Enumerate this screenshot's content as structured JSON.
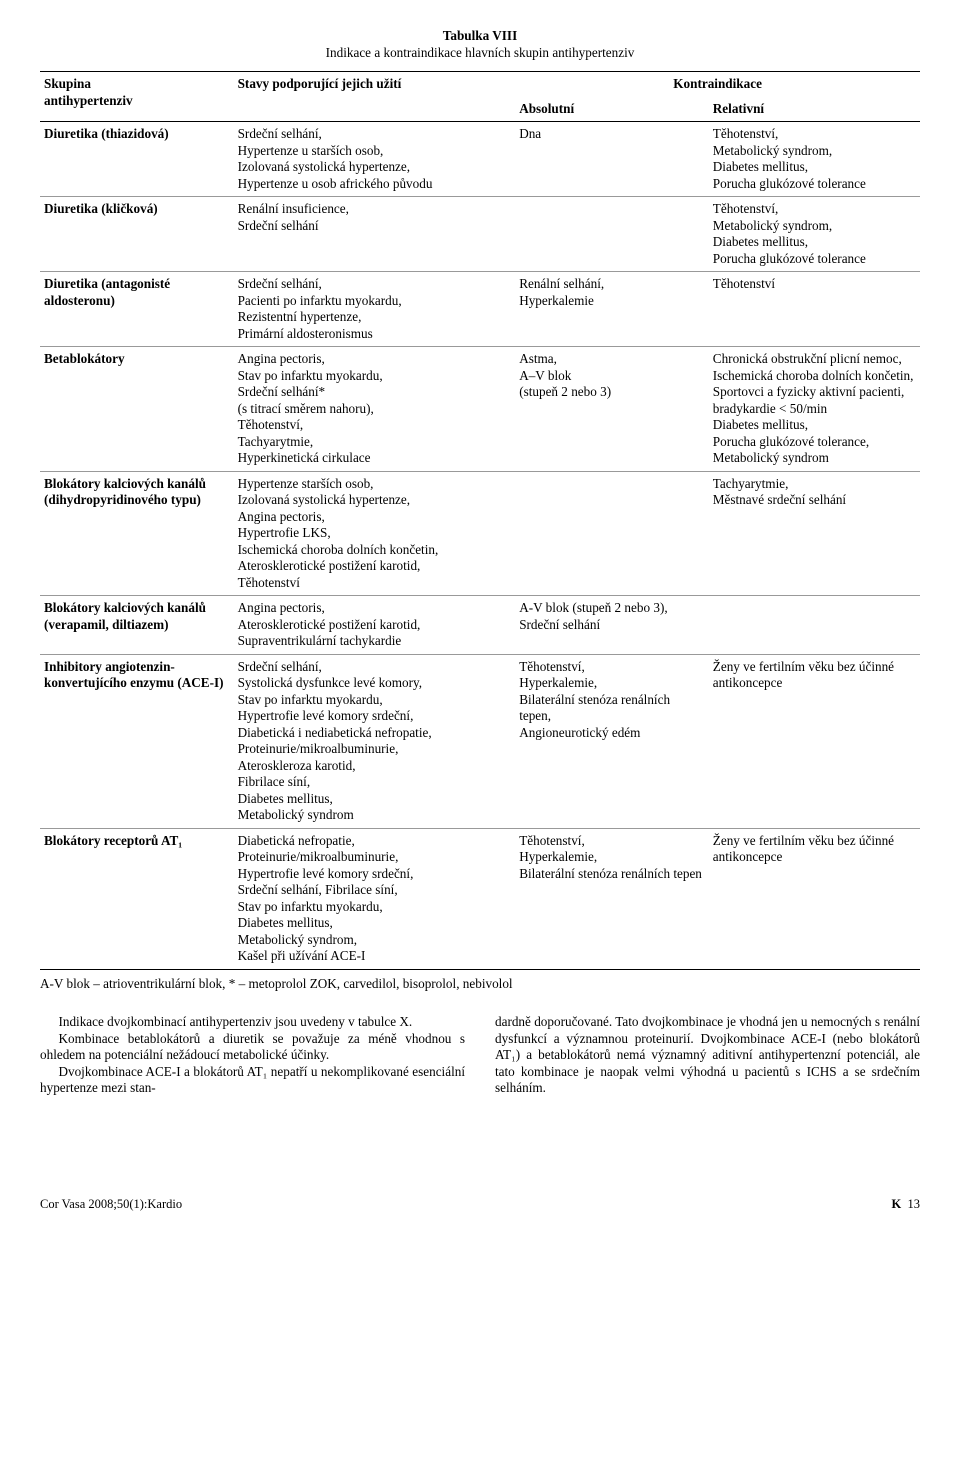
{
  "table": {
    "title": "Tabulka VIII",
    "subtitle": "Indikace a kontraindikace hlavních skupin antihypertenziv",
    "headers": {
      "group_top": "Skupina",
      "group_bottom": "antihypertenziv",
      "support": "Stavy podporující jejich užití",
      "contra": "Kontraindikace",
      "contra_abs": "Absolutní",
      "contra_rel": "Relativní"
    },
    "rows": [
      {
        "group": "Diuretika (thiazidová)",
        "support": "Srdeční selhání,\nHypertenze u starších osob,\nIzolovaná systolická hypertenze,\nHypertenze u osob afrického původu",
        "abs": "Dna",
        "rel": "Těhotenství,\nMetabolický syndrom,\nDiabetes mellitus,\nPorucha glukózové tolerance"
      },
      {
        "group": "Diuretika (kličková)",
        "support": "Renální insuficience,\nSrdeční selhání",
        "abs": "",
        "rel": "Těhotenství,\nMetabolický syndrom,\nDiabetes mellitus,\nPorucha glukózové tolerance"
      },
      {
        "group": "Diuretika (antagonisté aldosteronu)",
        "support": "Srdeční selhání,\nPacienti po infarktu myokardu,\nRezistentní hypertenze,\nPrimární aldosteronismus",
        "abs": "Renální selhání,\nHyperkalemie",
        "rel": "Těhotenství"
      },
      {
        "group": "Betablokátory",
        "support": "Angina pectoris,\nStav po infarktu myokardu,\nSrdeční selhání*\n(s titrací směrem nahoru),\nTěhotenství,\nTachyarytmie,\nHyperkinetická cirkulace",
        "abs": "Astma,\nA–V blok\n(stupeň 2 nebo 3)",
        "rel": "Chronická obstrukční plicní nemoc,\nIschemická choroba dolních končetin,\nSportovci a fyzicky aktivní pacienti,\nbradykardie < 50/min\nDiabetes mellitus,\nPorucha glukózové tolerance,\nMetabolický syndrom"
      },
      {
        "group": "Blokátory kalciových kanálů (dihydro­pyridinového typu)",
        "support": "Hypertenze starších osob,\nIzolovaná systolická hypertenze,\nAngina pectoris,\nHypertrofie LKS,\nIschemická choroba dolních končetin,\nAterosklerotické postižení karotid,\nTěhotenství",
        "abs": "",
        "rel": "Tachyarytmie,\nMěstnavé srdeční selhání"
      },
      {
        "group": "Blokátory kalciových kanálů (verapamil, diltiazem)",
        "support": "Angina pectoris,\nAterosklerotické postižení karotid,\nSupraventrikulární tachykardie",
        "abs": "A-V blok (stupeň 2 nebo 3),\nSrdeční selhání",
        "rel": ""
      },
      {
        "group": "Inhibitory angiotenzin­konvertujícího enzymu (ACE-I)",
        "support": "Srdeční selhání,\nSystolická dysfunkce levé komory,\nStav po infarktu myokardu,\nHypertrofie levé komory srdeční,\nDiabetická i nediabetická nefropatie,\nProteinurie/mikroalbuminurie,\nAteroskleroza karotid,\nFibrilace síní,\nDiabetes mellitus,\nMetabolický syndrom",
        "abs": "Těhotenství,\nHyperkalemie,\nBilaterální stenóza renálních tepen,\nAngioneurotický edém",
        "rel": "Ženy ve fertilním věku bez účinné antikoncepce"
      },
      {
        "group": "Blokátory receptorů AT₁",
        "support": "Diabetická nefropatie,\nProteinurie/mikroalbuminurie,\nHypertrofie levé komory srdeční,\nSrdeční selhání, Fibrilace síní,\nStav po infarktu myokardu,\nDiabetes mellitus,\nMetabolický syndrom,\nKašel při užívání ACE-I",
        "abs": "Těhotenství,\nHyperkalemie,\nBilaterální stenóza renálních tepen",
        "rel": "Ženy ve fertilním věku bez účinné antikoncepce"
      }
    ],
    "footnote": "A-V blok – atrioventrikulární blok, * – metoprolol ZOK, carvedilol, bisoprolol, nebivolol"
  },
  "body": {
    "left": {
      "p1": "Indikace dvojkombinací antihypertenziv jsou uvedeny v tabulce X.",
      "p2": "Kombinace betablokátorů a diuretik se považuje za méně vhodnou s ohledem na potenciální nežádoucí metabolické účinky.",
      "p3": "Dvojkombinace ACE-I a blokátorů AT₁ nepatří u nekomplikované esenciální hypertenze mezi stan-"
    },
    "right": {
      "p1": "dardně doporučované. Tato dvojkombinace je vhodná jen u nemocných s renální dysfunkcí a významnou proteinurií. Dvojkombinace ACE-I (nebo blokátorů AT₁) a betablokátorů nemá významný aditivní anti­hypertenzní potenciál, ale tato kombinace je naopak velmi výhodná u pacientů s ICHS a se srdečním selháním."
    }
  },
  "footer": {
    "left": "Cor Vasa 2008;50(1):Kardio",
    "right_label": "K",
    "right_page": "13"
  }
}
